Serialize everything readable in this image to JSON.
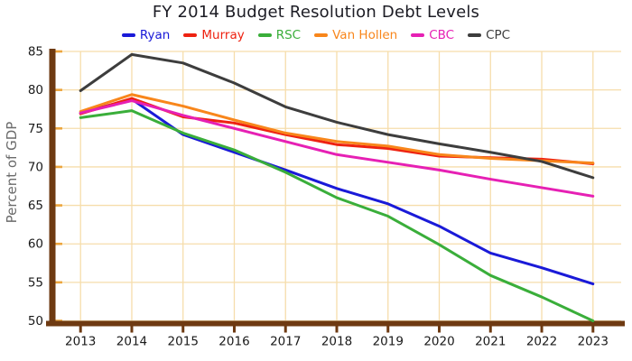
{
  "chart_data": {
    "type": "line",
    "title": "FY 2014 Budget Resolution Debt Levels",
    "xlabel": "",
    "ylabel": "Percent of GDP",
    "x": [
      2013,
      2014,
      2015,
      2016,
      2017,
      2018,
      2019,
      2020,
      2021,
      2022,
      2023
    ],
    "y_ticks": [
      50,
      55,
      60,
      65,
      70,
      75,
      80,
      85
    ],
    "ylim": [
      50,
      85
    ],
    "grid": true,
    "legend_position": "top",
    "series": [
      {
        "name": "Ryan",
        "color": "#1a1ad8",
        "values": [
          77.0,
          78.8,
          74.2,
          71.9,
          69.6,
          67.2,
          65.2,
          62.3,
          58.8,
          56.9,
          54.8
        ]
      },
      {
        "name": "Murray",
        "color": "#ee2211",
        "values": [
          76.9,
          78.9,
          76.5,
          75.7,
          74.2,
          72.9,
          72.4,
          71.4,
          71.2,
          71.0,
          70.4
        ]
      },
      {
        "name": "RSC",
        "color": "#3aae3a",
        "values": [
          76.4,
          77.3,
          74.4,
          72.2,
          69.3,
          66.0,
          63.6,
          59.9,
          55.9,
          53.1,
          50.0
        ]
      },
      {
        "name": "Van Hollen",
        "color": "#f8861b",
        "values": [
          77.2,
          79.4,
          77.9,
          76.1,
          74.4,
          73.3,
          72.7,
          71.6,
          71.1,
          70.8,
          70.5
        ]
      },
      {
        "name": "CBC",
        "color": "#e620b4",
        "values": [
          77.0,
          78.6,
          76.7,
          75.0,
          73.3,
          71.6,
          70.6,
          69.6,
          68.4,
          67.3,
          66.2
        ]
      },
      {
        "name": "CPC",
        "color": "#3d3d3d",
        "values": [
          79.9,
          84.6,
          83.5,
          80.9,
          77.8,
          75.8,
          74.2,
          73.0,
          71.9,
          70.7,
          68.6
        ]
      }
    ],
    "colors": {
      "grid": "#f6ddab",
      "axis": "#6e3a12",
      "tick": "#eda63e",
      "title": "#1c1c24",
      "tick_label": "#1a1a1a",
      "ylabel": "#6b6b6b"
    }
  }
}
